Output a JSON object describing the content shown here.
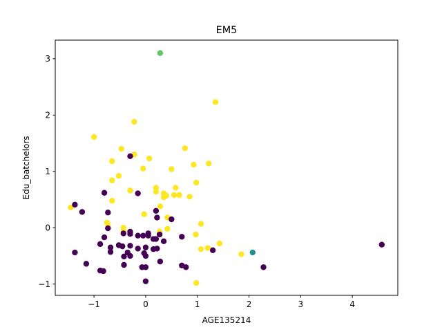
{
  "chart_data": {
    "type": "scatter",
    "title": "EM5",
    "xlabel": "AGE135214",
    "ylabel": "Edu_batchelors",
    "xlim": [
      -1.75,
      4.88
    ],
    "ylim": [
      -1.2,
      3.33
    ],
    "xticks": [
      -1,
      0,
      1,
      2,
      3,
      4
    ],
    "yticks": [
      -1,
      0,
      1,
      2,
      3
    ],
    "xtick_labels": [
      "−1",
      "0",
      "1",
      "2",
      "3",
      "4"
    ],
    "ytick_labels": [
      "−1",
      "0",
      "1",
      "2",
      "3"
    ],
    "grid": false,
    "colors": {
      "cluster_purple": "#440154",
      "cluster_yellow": "#fde725",
      "cluster_teal": "#21918c",
      "cluster_green": "#5ec962"
    },
    "series": [
      {
        "color": "#fde725",
        "points": [
          [
            -1.0,
            1.61
          ],
          [
            -0.22,
            1.88
          ],
          [
            1.35,
            2.23
          ],
          [
            -0.47,
            1.4
          ],
          [
            -0.22,
            1.3
          ],
          [
            0.76,
            1.41
          ],
          [
            -0.65,
            1.18
          ],
          [
            0.07,
            1.23
          ],
          [
            -0.05,
            1.05
          ],
          [
            0.5,
            1.04
          ],
          [
            0.93,
            1.12
          ],
          [
            1.22,
            1.14
          ],
          [
            -0.52,
            0.92
          ],
          [
            -0.65,
            0.84
          ],
          [
            0.2,
            0.71
          ],
          [
            0.58,
            0.71
          ],
          [
            -0.3,
            0.66
          ],
          [
            0.2,
            0.64
          ],
          [
            0.98,
            0.8
          ],
          [
            0.35,
            0.61
          ],
          [
            0.65,
            0.58
          ],
          [
            0.4,
            0.57
          ],
          [
            0.55,
            0.58
          ],
          [
            0.35,
            0.54
          ],
          [
            0.85,
            0.55
          ],
          [
            -0.65,
            0.48
          ],
          [
            0.28,
            0.38
          ],
          [
            -1.45,
            0.36
          ],
          [
            -0.03,
            0.24
          ],
          [
            0.42,
            0.18
          ],
          [
            -0.75,
            0.09
          ],
          [
            -0.73,
            0.05
          ],
          [
            1.07,
            0.07
          ],
          [
            -0.43,
            0.0
          ],
          [
            -0.43,
            -0.05
          ],
          [
            0.42,
            -0.02
          ],
          [
            -0.43,
            -0.09
          ],
          [
            0.27,
            -0.07
          ],
          [
            0.97,
            -0.12
          ],
          [
            1.43,
            -0.28
          ],
          [
            1.07,
            -0.38
          ],
          [
            1.2,
            -0.36
          ],
          [
            1.85,
            -0.47
          ],
          [
            0.98,
            -0.98
          ]
        ]
      },
      {
        "color": "#440154",
        "points": [
          [
            -0.3,
            1.27
          ],
          [
            -0.8,
            0.62
          ],
          [
            -0.15,
            0.61
          ],
          [
            -1.37,
            0.41
          ],
          [
            -1.23,
            0.28
          ],
          [
            -0.73,
            0.27
          ],
          [
            0.2,
            0.3
          ],
          [
            0.22,
            0.18
          ],
          [
            0.5,
            0.15
          ],
          [
            -0.73,
            -0.01
          ],
          [
            -0.43,
            -0.1
          ],
          [
            -0.3,
            -0.07
          ],
          [
            0.27,
            -0.12
          ],
          [
            0.05,
            -0.1
          ],
          [
            -0.3,
            -0.11
          ],
          [
            -0.15,
            -0.14
          ],
          [
            -0.05,
            -0.14
          ],
          [
            0.05,
            -0.14
          ],
          [
            -0.8,
            -0.17
          ],
          [
            0.15,
            -0.2
          ],
          [
            0.2,
            -0.2
          ],
          [
            0.35,
            -0.24
          ],
          [
            0.7,
            -0.16
          ],
          [
            -0.88,
            -0.29
          ],
          [
            -0.52,
            -0.31
          ],
          [
            -0.45,
            -0.33
          ],
          [
            -0.3,
            -0.32
          ],
          [
            -0.68,
            -0.35
          ],
          [
            -0.15,
            -0.37
          ],
          [
            0.0,
            -0.35
          ],
          [
            0.15,
            -0.38
          ],
          [
            0.22,
            -0.37
          ],
          [
            -1.37,
            -0.44
          ],
          [
            -0.68,
            -0.43
          ],
          [
            -0.35,
            -0.44
          ],
          [
            -0.03,
            -0.45
          ],
          [
            -0.42,
            -0.51
          ],
          [
            -0.3,
            -0.5
          ],
          [
            0.0,
            -0.5
          ],
          [
            1.3,
            -0.4
          ],
          [
            -1.15,
            -0.64
          ],
          [
            -0.42,
            -0.66
          ],
          [
            0.28,
            -0.6
          ],
          [
            0.7,
            -0.67
          ],
          [
            0.78,
            -0.7
          ],
          [
            -0.07,
            -0.7
          ],
          [
            0.0,
            -0.7
          ],
          [
            -0.88,
            -0.76
          ],
          [
            -0.82,
            -0.77
          ],
          [
            0.0,
            -0.95
          ],
          [
            2.28,
            -0.7
          ],
          [
            4.57,
            -0.3
          ]
        ]
      },
      {
        "color": "#21918c",
        "points": [
          [
            2.07,
            -0.44
          ]
        ]
      },
      {
        "color": "#5ec962",
        "points": [
          [
            0.28,
            3.1
          ]
        ]
      }
    ]
  }
}
